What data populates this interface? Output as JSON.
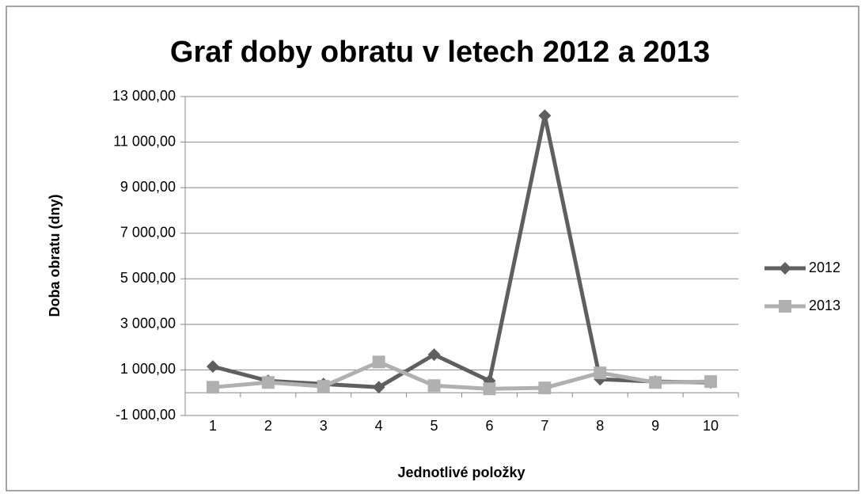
{
  "chart_data": {
    "type": "line",
    "title": "Graf doby obratu v letech 2012 a 2013",
    "x_label": "Jednotlivé položky",
    "y_label": "Doba obratu (dny)",
    "categories": [
      "1",
      "2",
      "3",
      "4",
      "5",
      "6",
      "7",
      "8",
      "9",
      "10"
    ],
    "series": [
      {
        "name": "2012",
        "color": "#5f5f5f",
        "marker": "diamond",
        "values": [
          1150,
          520,
          380,
          240,
          1670,
          520,
          12160,
          590,
          490,
          450
        ]
      },
      {
        "name": "2013",
        "color": "#b0b0b0",
        "marker": "square",
        "values": [
          240,
          450,
          280,
          1350,
          310,
          170,
          210,
          870,
          450,
          490
        ]
      }
    ],
    "ylim": [
      -1000,
      13000
    ],
    "yticks": [
      {
        "value": -1000,
        "label": "-1 000,00"
      },
      {
        "value": 1000,
        "label": "1 000,00"
      },
      {
        "value": 3000,
        "label": "3 000,00"
      },
      {
        "value": 5000,
        "label": "5 000,00"
      },
      {
        "value": 7000,
        "label": "7 000,00"
      },
      {
        "value": 9000,
        "label": "9 000,00"
      },
      {
        "value": 11000,
        "label": "11 000,00"
      },
      {
        "value": 13000,
        "label": "13 000,00"
      }
    ],
    "grid": true,
    "legend": "right"
  }
}
